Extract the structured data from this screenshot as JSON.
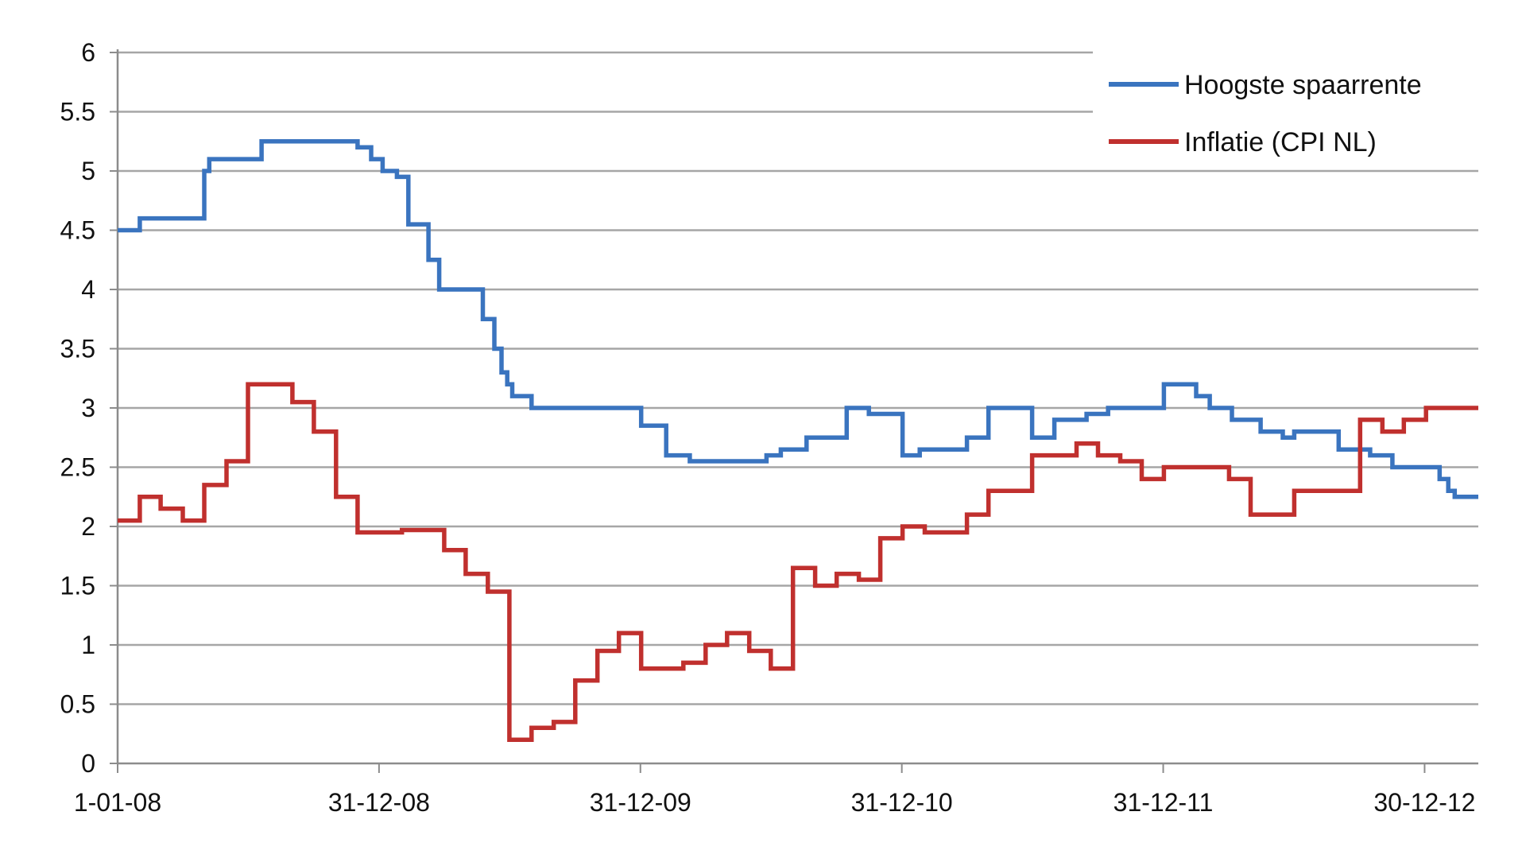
{
  "chart_data": {
    "type": "line",
    "title": "",
    "xlabel": "",
    "ylabel": "",
    "x_tick_labels": [
      "1-01-08",
      "31-12-08",
      "31-12-09",
      "31-12-10",
      "31-12-11",
      "30-12-12"
    ],
    "y_tick_labels": [
      "0",
      "0.5",
      "1",
      "1.5",
      "2",
      "2.5",
      "3",
      "3.5",
      "4",
      "4.5",
      "5",
      "5.5",
      "6"
    ],
    "xlim": [
      "2008-01-01",
      "2013-03-15"
    ],
    "ylim": [
      0,
      6
    ],
    "grid": "horizontal",
    "step": true,
    "legend_position": "top-right",
    "series": [
      {
        "name": "Hoogste spaarrente",
        "color": "#3a74bf",
        "points": [
          [
            "2008-01-01",
            4.5
          ],
          [
            "2008-02-01",
            4.6
          ],
          [
            "2008-05-01",
            5.0
          ],
          [
            "2008-05-08",
            5.1
          ],
          [
            "2008-07-20",
            5.25
          ],
          [
            "2008-12-01",
            5.2
          ],
          [
            "2008-12-20",
            5.1
          ],
          [
            "2009-01-05",
            5.0
          ],
          [
            "2009-01-25",
            4.95
          ],
          [
            "2009-02-10",
            4.55
          ],
          [
            "2009-03-10",
            4.25
          ],
          [
            "2009-03-25",
            4.0
          ],
          [
            "2009-05-25",
            3.75
          ],
          [
            "2009-06-10",
            3.5
          ],
          [
            "2009-06-20",
            3.3
          ],
          [
            "2009-06-28",
            3.2
          ],
          [
            "2009-07-05",
            3.1
          ],
          [
            "2009-08-01",
            3.0
          ],
          [
            "2010-01-01",
            2.85
          ],
          [
            "2010-02-05",
            2.6
          ],
          [
            "2010-03-10",
            2.55
          ],
          [
            "2010-06-25",
            2.6
          ],
          [
            "2010-07-15",
            2.65
          ],
          [
            "2010-08-20",
            2.75
          ],
          [
            "2010-10-15",
            3.0
          ],
          [
            "2010-11-15",
            2.95
          ],
          [
            "2011-01-01",
            2.6
          ],
          [
            "2011-01-25",
            2.65
          ],
          [
            "2011-03-01",
            2.65
          ],
          [
            "2011-04-01",
            2.75
          ],
          [
            "2011-05-01",
            3.0
          ],
          [
            "2011-07-01",
            2.75
          ],
          [
            "2011-08-01",
            2.9
          ],
          [
            "2011-09-15",
            2.95
          ],
          [
            "2011-10-15",
            3.0
          ],
          [
            "2012-01-01",
            3.2
          ],
          [
            "2012-02-15",
            3.1
          ],
          [
            "2012-03-05",
            3.0
          ],
          [
            "2012-04-05",
            2.9
          ],
          [
            "2012-05-15",
            2.8
          ],
          [
            "2012-06-15",
            2.75
          ],
          [
            "2012-07-01",
            2.8
          ],
          [
            "2012-09-01",
            2.65
          ],
          [
            "2012-10-15",
            2.6
          ],
          [
            "2012-11-15",
            2.5
          ],
          [
            "2013-01-20",
            2.4
          ],
          [
            "2013-02-01",
            2.3
          ],
          [
            "2013-02-10",
            2.25
          ],
          [
            "2013-03-15",
            2.25
          ]
        ]
      },
      {
        "name": "Inflatie (CPI NL)",
        "color": "#c0302e",
        "points": [
          [
            "2008-01-01",
            2.05
          ],
          [
            "2008-02-01",
            2.25
          ],
          [
            "2008-03-01",
            2.15
          ],
          [
            "2008-04-01",
            2.05
          ],
          [
            "2008-05-01",
            2.35
          ],
          [
            "2008-06-01",
            2.55
          ],
          [
            "2008-07-01",
            3.2
          ],
          [
            "2008-09-01",
            3.05
          ],
          [
            "2008-10-01",
            2.8
          ],
          [
            "2008-11-01",
            2.25
          ],
          [
            "2008-12-01",
            1.95
          ],
          [
            "2009-02-01",
            1.97
          ],
          [
            "2009-03-01",
            1.97
          ],
          [
            "2009-04-01",
            1.8
          ],
          [
            "2009-05-01",
            1.6
          ],
          [
            "2009-06-01",
            1.45
          ],
          [
            "2009-07-01",
            0.2
          ],
          [
            "2009-08-01",
            0.3
          ],
          [
            "2009-09-01",
            0.35
          ],
          [
            "2009-10-01",
            0.7
          ],
          [
            "2009-11-01",
            0.95
          ],
          [
            "2009-12-01",
            1.1
          ],
          [
            "2010-01-01",
            0.8
          ],
          [
            "2010-02-01",
            0.8
          ],
          [
            "2010-03-01",
            0.85
          ],
          [
            "2010-04-01",
            1.0
          ],
          [
            "2010-05-01",
            1.1
          ],
          [
            "2010-06-01",
            0.95
          ],
          [
            "2010-07-01",
            0.8
          ],
          [
            "2010-08-01",
            1.65
          ],
          [
            "2010-09-01",
            1.5
          ],
          [
            "2010-10-01",
            1.6
          ],
          [
            "2010-11-01",
            1.55
          ],
          [
            "2010-12-01",
            1.9
          ],
          [
            "2011-01-01",
            2.0
          ],
          [
            "2011-02-01",
            1.95
          ],
          [
            "2011-04-01",
            2.1
          ],
          [
            "2011-05-01",
            2.3
          ],
          [
            "2011-07-01",
            2.6
          ],
          [
            "2011-09-01",
            2.7
          ],
          [
            "2011-10-01",
            2.6
          ],
          [
            "2011-11-01",
            2.55
          ],
          [
            "2011-12-01",
            2.4
          ],
          [
            "2012-01-01",
            2.5
          ],
          [
            "2012-04-01",
            2.4
          ],
          [
            "2012-05-01",
            2.1
          ],
          [
            "2012-07-01",
            2.3
          ],
          [
            "2012-10-01",
            2.9
          ],
          [
            "2012-11-01",
            2.8
          ],
          [
            "2012-12-01",
            2.9
          ],
          [
            "2013-01-01",
            3.0
          ],
          [
            "2013-03-15",
            3.0
          ]
        ]
      }
    ]
  }
}
